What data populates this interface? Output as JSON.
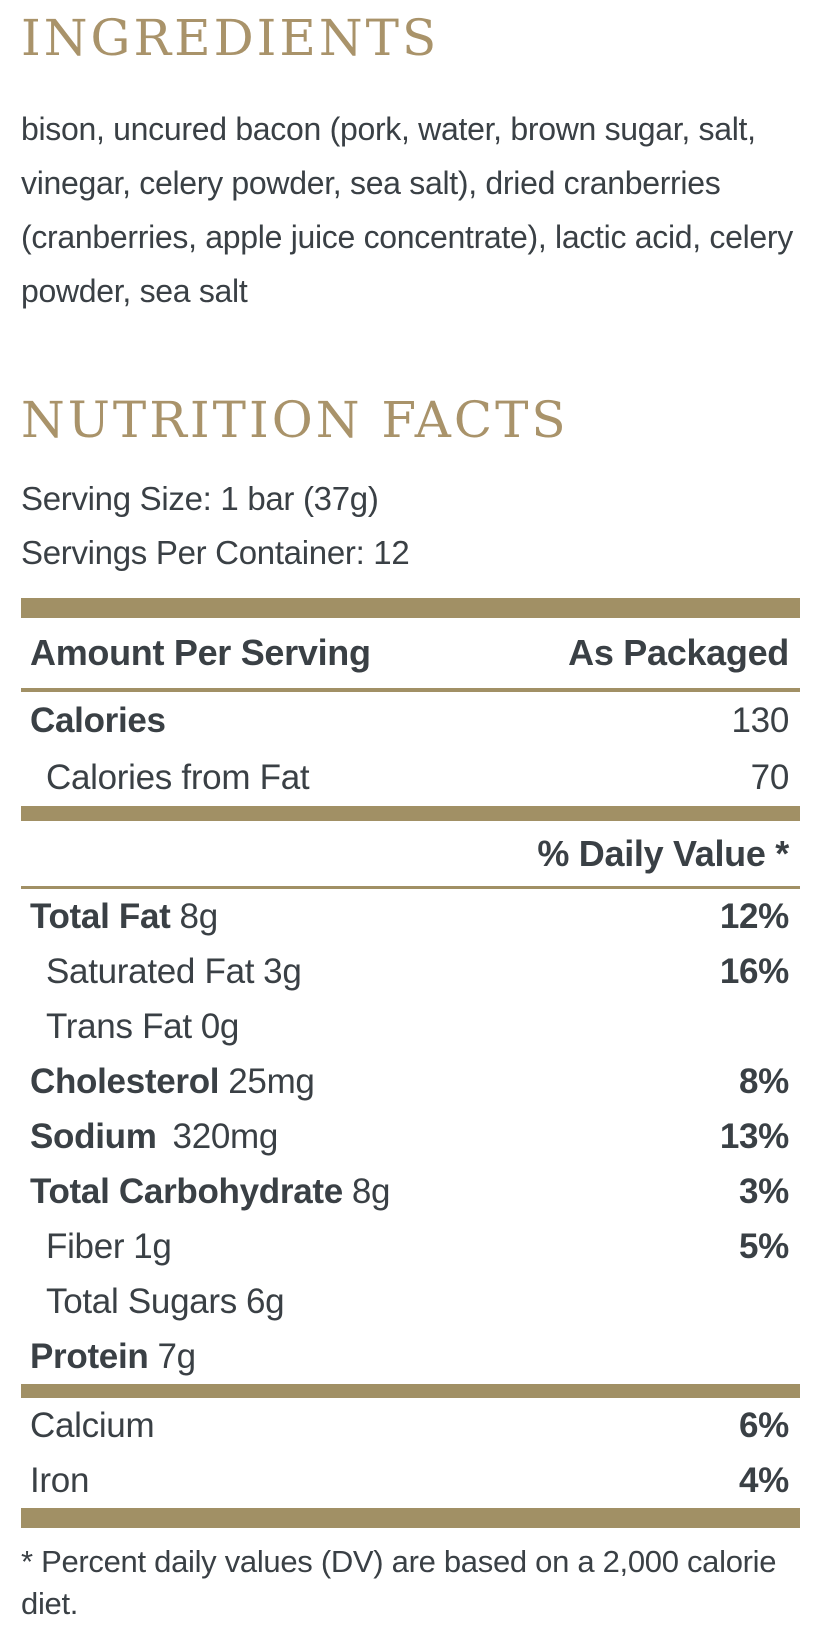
{
  "colors": {
    "accent_gold_bar": "#a19065",
    "heading_gold": "#a9936a",
    "text_dark": "#3a4045"
  },
  "ingredients": {
    "title": "INGREDIENTS",
    "text": "bison, uncured bacon (pork, water, brown sugar, salt,\nvinegar, celery powder, sea salt), dried cranberries\n(cranberries, apple juice concentrate), lactic acid, celery\npowder, sea salt"
  },
  "nutrition": {
    "title": "NUTRITION FACTS",
    "serving_size": "Serving Size: 1 bar (37g)",
    "servings_per_container": "Servings Per Container: 12",
    "table": {
      "header": {
        "left": "Amount Per Serving",
        "right": "As Packaged"
      },
      "calories_rows": [
        {
          "label": "Calories",
          "value": "130"
        },
        {
          "label": "Calories from Fat",
          "value": "70"
        }
      ],
      "daily_value_header": "% Daily Value *",
      "nutrient_rows": [
        {
          "name": "Total Fat",
          "amount": "8g",
          "dv": "12%"
        },
        {
          "name": "Saturated Fat",
          "amount": "3g",
          "dv": "16%"
        },
        {
          "name": "Trans Fat",
          "amount": "0g",
          "dv": ""
        },
        {
          "name": "Cholesterol",
          "amount": "25mg",
          "dv": "8%"
        },
        {
          "name": "Sodium",
          "amount": "320mg",
          "dv": "13%"
        },
        {
          "name": "Total Carbohydrate",
          "amount": "8g",
          "dv": "3%"
        },
        {
          "name": "Fiber",
          "amount": "1g",
          "dv": "5%"
        },
        {
          "name": "Total Sugars",
          "amount": "6g",
          "dv": ""
        },
        {
          "name": "Protein",
          "amount": "7g",
          "dv": ""
        }
      ],
      "mineral_rows": [
        {
          "name": "Calcium",
          "dv": "6%"
        },
        {
          "name": "Iron",
          "dv": "4%"
        }
      ],
      "footnote": "* Percent daily values (DV) are based on a 2,000 calorie diet."
    }
  }
}
